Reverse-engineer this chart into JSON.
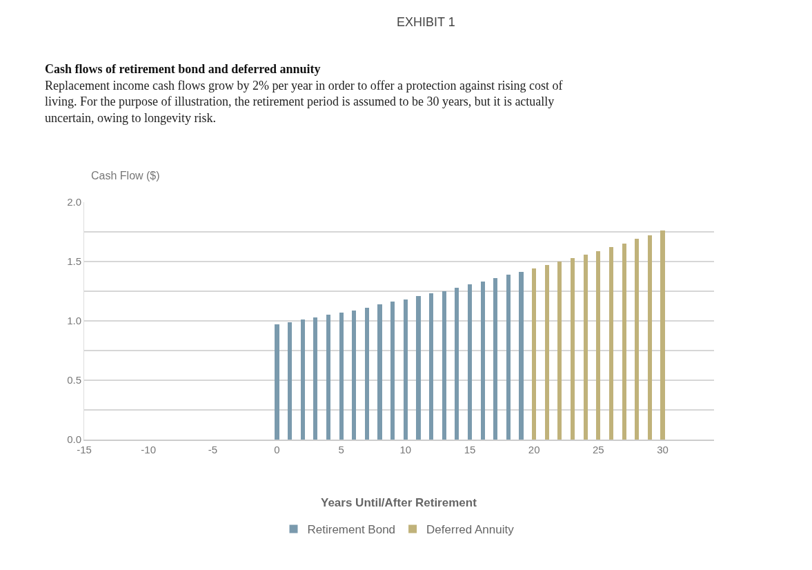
{
  "chart_data": {
    "type": "bar",
    "title": "Cash flows of retirement bond and deferred annuity",
    "subtitle": "Replacement income cash flows grow by 2% per year in order to offer a protection against rising cost of living. For the purpose of illustration, the retirement period is assumed to be 30 years, but it is actually uncertain, owing to longevity risk.",
    "annotations": [
      "EXHIBIT 1"
    ],
    "xlabel": "Years Until/After Retirement",
    "ylabel": "Cash Flow ($)",
    "series": [
      {
        "name": "Retirement Bond",
        "color": "#7a9aad",
        "x": [
          0,
          1,
          2,
          3,
          4,
          5,
          6,
          7,
          8,
          9,
          10,
          11,
          12,
          13,
          14,
          15,
          16,
          17,
          18,
          19
        ],
        "values": [
          0.97,
          0.99,
          1.01,
          1.03,
          1.05,
          1.07,
          1.09,
          1.11,
          1.14,
          1.16,
          1.18,
          1.21,
          1.23,
          1.25,
          1.28,
          1.31,
          1.33,
          1.36,
          1.39,
          1.41
        ]
      },
      {
        "name": "Deferred Annuity",
        "color": "#c0b27a",
        "x": [
          20,
          21,
          22,
          23,
          24,
          25,
          26,
          27,
          28,
          29,
          30
        ],
        "values": [
          1.44,
          1.47,
          1.5,
          1.53,
          1.56,
          1.59,
          1.62,
          1.65,
          1.69,
          1.72,
          1.76
        ]
      }
    ],
    "xlim": [
      -15,
      34
    ],
    "xticks": [
      -15,
      -10,
      -5,
      0,
      5,
      10,
      15,
      20,
      25,
      30
    ],
    "ylim": [
      0,
      2.0
    ],
    "yticks": [
      {
        "value": 0,
        "label": "0.0"
      },
      {
        "value": 0.25,
        "label": null
      },
      {
        "value": 0.5,
        "label": "0.5"
      },
      {
        "value": 0.75,
        "label": null
      },
      {
        "value": 1.0,
        "label": "1.0"
      },
      {
        "value": 1.25,
        "label": null
      },
      {
        "value": 1.5,
        "label": "1.5"
      },
      {
        "value": 1.75,
        "label": null
      },
      {
        "value": 2.0,
        "label": "2.0"
      }
    ],
    "grid": "y",
    "legend": "bottom"
  }
}
